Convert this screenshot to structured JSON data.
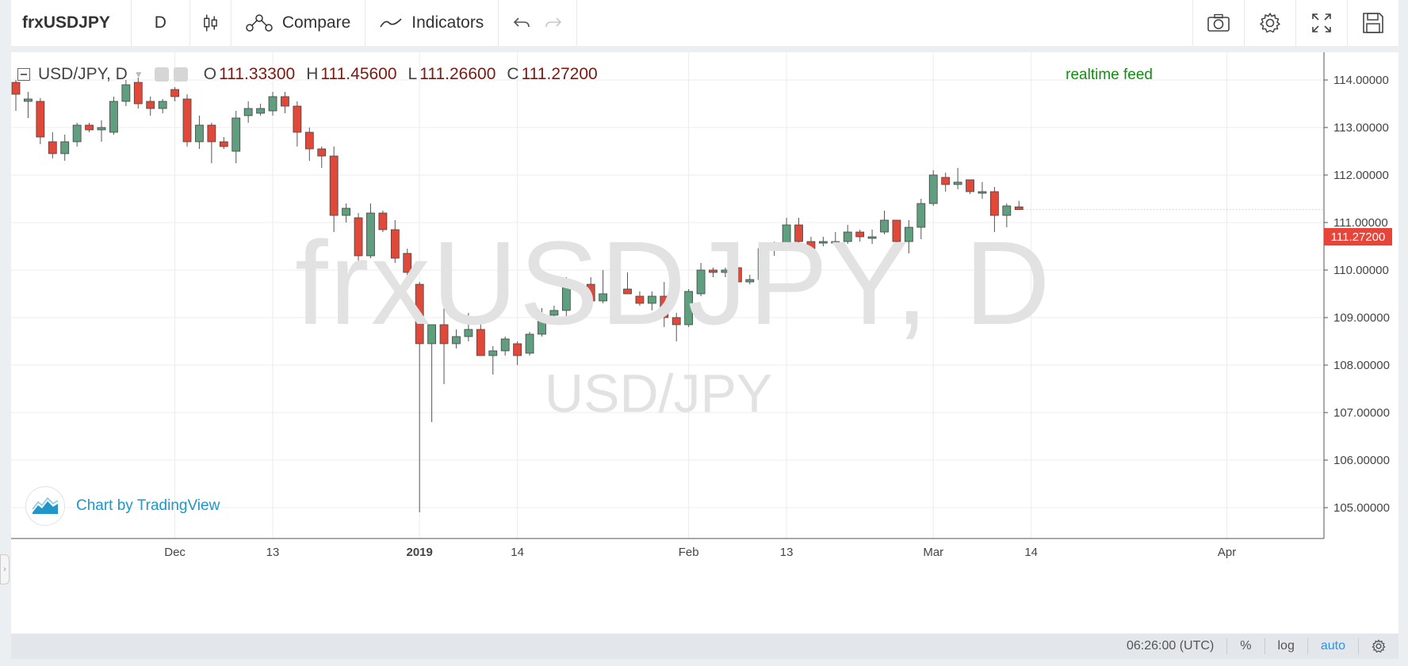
{
  "toolbar": {
    "symbol": "frxUSDJPY",
    "interval": "D",
    "compare_label": "Compare",
    "indicators_label": "Indicators",
    "icons": [
      "candles-icon",
      "compare-icon",
      "indicators-icon",
      "undo-icon",
      "redo-icon",
      "camera-icon",
      "gear-icon",
      "fullscreen-icon",
      "save-icon"
    ]
  },
  "legend": {
    "symbol": "USD/JPY, D",
    "open_key": "O",
    "open": "111.33300",
    "high_key": "H",
    "high": "111.45600",
    "low_key": "L",
    "low": "111.26600",
    "close_key": "C",
    "close": "111.27200"
  },
  "feed_label": "realtime feed",
  "watermark": {
    "main": "frxUSDJPY, D",
    "sub": "USD/JPY"
  },
  "branding": "Chart by TradingView",
  "last_price_tag": "111.27200",
  "status": {
    "time": "06:26:00 (UTC)",
    "percent": "%",
    "log": "log",
    "auto": "auto"
  },
  "colors": {
    "up": "#5f9e7e",
    "down": "#e0493a",
    "feed": "#138d13",
    "link": "#2196c9",
    "tag": "#e8443a"
  },
  "chart_data": {
    "type": "candlestick",
    "ylim": [
      104.4,
      114.6
    ],
    "y_ticks": [
      "105.00000",
      "106.00000",
      "107.00000",
      "108.00000",
      "109.00000",
      "110.00000",
      "111.00000",
      "112.00000",
      "113.00000",
      "114.00000"
    ],
    "x_ticks": [
      {
        "label": "Dec",
        "bold": false,
        "idx": 13
      },
      {
        "label": "13",
        "bold": false,
        "idx": 21
      },
      {
        "label": "2019",
        "bold": true,
        "idx": 33
      },
      {
        "label": "14",
        "bold": false,
        "idx": 41
      },
      {
        "label": "Feb",
        "bold": false,
        "idx": 55
      },
      {
        "label": "13",
        "bold": false,
        "idx": 63
      },
      {
        "label": "Mar",
        "bold": false,
        "idx": 75
      },
      {
        "label": "14",
        "bold": false,
        "idx": 83
      },
      {
        "label": "Apr",
        "bold": false,
        "idx": 99
      }
    ],
    "ohlc": [
      [
        113.95,
        114.0,
        113.35,
        113.7
      ],
      [
        113.55,
        113.75,
        113.2,
        113.6
      ],
      [
        113.55,
        113.62,
        112.65,
        112.8
      ],
      [
        112.7,
        112.9,
        112.35,
        112.45
      ],
      [
        112.45,
        112.85,
        112.3,
        112.7
      ],
      [
        112.7,
        113.1,
        112.6,
        113.05
      ],
      [
        113.05,
        113.1,
        112.9,
        112.95
      ],
      [
        112.95,
        113.15,
        112.7,
        113.0
      ],
      [
        112.9,
        113.65,
        112.85,
        113.55
      ],
      [
        113.55,
        114.0,
        113.45,
        113.9
      ],
      [
        113.95,
        114.05,
        113.4,
        113.5
      ],
      [
        113.55,
        113.65,
        113.25,
        113.4
      ],
      [
        113.4,
        113.6,
        113.3,
        113.55
      ],
      [
        113.8,
        113.85,
        113.55,
        113.65
      ],
      [
        113.6,
        113.7,
        112.6,
        112.7
      ],
      [
        112.7,
        113.25,
        112.55,
        113.05
      ],
      [
        113.05,
        113.1,
        112.25,
        112.7
      ],
      [
        112.7,
        112.8,
        112.55,
        112.6
      ],
      [
        112.5,
        113.35,
        112.25,
        113.2
      ],
      [
        113.25,
        113.55,
        113.1,
        113.4
      ],
      [
        113.3,
        113.5,
        113.25,
        113.4
      ],
      [
        113.35,
        113.75,
        113.25,
        113.65
      ],
      [
        113.65,
        113.75,
        113.3,
        113.45
      ],
      [
        113.45,
        113.55,
        112.6,
        112.9
      ],
      [
        112.9,
        113.0,
        112.3,
        112.55
      ],
      [
        112.55,
        112.6,
        112.15,
        112.4
      ],
      [
        112.4,
        112.6,
        110.8,
        111.15
      ],
      [
        111.15,
        111.4,
        111.0,
        111.3
      ],
      [
        111.1,
        111.2,
        110.2,
        110.3
      ],
      [
        110.3,
        111.4,
        110.25,
        111.2
      ],
      [
        111.2,
        111.25,
        110.8,
        110.85
      ],
      [
        110.85,
        111.05,
        110.15,
        110.25
      ],
      [
        110.35,
        110.45,
        109.85,
        109.95
      ],
      [
        109.7,
        109.75,
        104.9,
        108.45
      ],
      [
        108.45,
        108.8,
        106.8,
        108.85
      ],
      [
        108.85,
        109.45,
        107.6,
        108.45
      ],
      [
        108.45,
        108.75,
        108.35,
        108.6
      ],
      [
        108.6,
        109.1,
        108.5,
        108.75
      ],
      [
        108.75,
        109.0,
        108.25,
        108.2
      ],
      [
        108.2,
        108.4,
        107.8,
        108.3
      ],
      [
        108.3,
        108.6,
        108.2,
        108.55
      ],
      [
        108.45,
        108.5,
        108.0,
        108.2
      ],
      [
        108.25,
        108.7,
        108.2,
        108.65
      ],
      [
        108.65,
        109.2,
        108.6,
        109.05
      ],
      [
        109.05,
        109.25,
        108.85,
        109.15
      ],
      [
        109.15,
        109.85,
        109.0,
        109.75
      ],
      [
        109.7,
        109.75,
        109.65,
        109.7
      ],
      [
        109.7,
        109.85,
        109.2,
        109.35
      ],
      [
        109.35,
        110.0,
        109.3,
        109.5
      ],
      [
        109.5,
        109.75,
        109.35,
        109.6
      ],
      [
        109.6,
        109.95,
        109.5,
        109.5
      ],
      [
        109.45,
        109.55,
        109.25,
        109.3
      ],
      [
        109.3,
        109.55,
        109.15,
        109.45
      ],
      [
        109.45,
        109.75,
        108.8,
        109.0
      ],
      [
        109.0,
        109.1,
        108.5,
        108.85
      ],
      [
        108.85,
        109.6,
        108.8,
        109.55
      ],
      [
        109.5,
        110.15,
        109.45,
        110.0
      ],
      [
        110.0,
        110.05,
        109.85,
        109.95
      ],
      [
        109.95,
        110.05,
        109.85,
        110.0
      ],
      [
        110.05,
        110.1,
        109.65,
        109.75
      ],
      [
        109.75,
        109.9,
        109.7,
        109.8
      ],
      [
        109.8,
        110.5,
        109.8,
        110.45
      ],
      [
        110.45,
        110.6,
        110.3,
        110.55
      ],
      [
        110.55,
        111.1,
        110.5,
        110.95
      ],
      [
        110.95,
        111.1,
        110.5,
        110.6
      ],
      [
        110.6,
        110.7,
        110.3,
        110.45
      ],
      [
        110.6,
        110.7,
        110.5,
        110.6
      ],
      [
        110.6,
        110.8,
        110.5,
        110.6
      ],
      [
        110.6,
        110.95,
        110.55,
        110.8
      ],
      [
        110.8,
        110.85,
        110.6,
        110.7
      ],
      [
        110.7,
        110.85,
        110.55,
        110.7
      ],
      [
        110.8,
        111.25,
        110.75,
        111.05
      ],
      [
        111.05,
        111.05,
        110.5,
        110.6
      ],
      [
        110.6,
        111.05,
        110.35,
        110.9
      ],
      [
        110.9,
        111.5,
        110.65,
        111.4
      ],
      [
        111.4,
        112.1,
        111.35,
        112.0
      ],
      [
        111.95,
        112.05,
        111.65,
        111.8
      ],
      [
        111.8,
        112.15,
        111.7,
        111.85
      ],
      [
        111.9,
        111.9,
        111.6,
        111.65
      ],
      [
        111.65,
        111.85,
        111.5,
        111.65
      ],
      [
        111.65,
        111.75,
        110.8,
        111.15
      ],
      [
        111.15,
        111.4,
        110.9,
        111.35
      ],
      [
        111.33,
        111.456,
        111.266,
        111.272
      ]
    ]
  }
}
